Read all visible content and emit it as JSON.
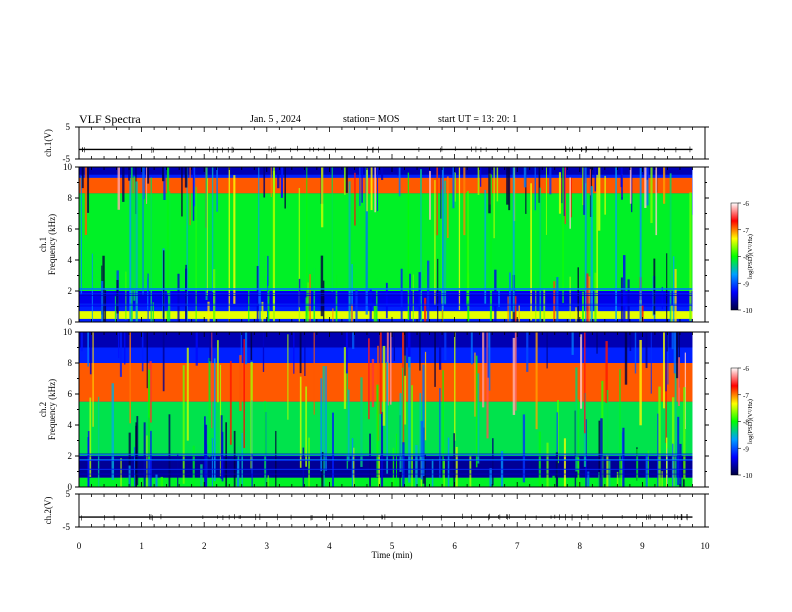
{
  "header": {
    "title": "VLF Spectra",
    "date": "Jan. 5 , 2024",
    "station": "station= MOS",
    "start_ut": "start UT =  13: 20: 1"
  },
  "panels": [
    {
      "id": "ch1-wave",
      "type": "waveform",
      "ylabel": "ch.1(V)",
      "yticks": [
        "5",
        "-5"
      ]
    },
    {
      "id": "ch1-spec",
      "type": "spectrogram",
      "ylabel_top": "ch.1",
      "ylabel": "Frequency (kHz)",
      "yticks": [
        "0",
        "2",
        "4",
        "6",
        "8",
        "10"
      ]
    },
    {
      "id": "ch2-spec",
      "type": "spectrogram",
      "ylabel_top": "ch.2",
      "ylabel": "Frequency (kHz)",
      "yticks": [
        "0",
        "2",
        "4",
        "6",
        "8",
        "10"
      ]
    },
    {
      "id": "ch2-wave",
      "type": "waveform",
      "ylabel": "ch.2(V)",
      "yticks": [
        "5",
        "-5"
      ]
    }
  ],
  "colorbar": {
    "label": "log(PSD)(V²/Hz)",
    "ticks": [
      "-6",
      "-7",
      "-8",
      "-9",
      "-10"
    ],
    "colors": [
      "#ffffff",
      "#ff0000",
      "#ffff00",
      "#00ff00",
      "#00a0ff",
      "#0000ff",
      "#000040"
    ]
  },
  "chart_data": [
    {
      "type": "line",
      "title": "VLF Spectra",
      "xlabel": "Time (min)",
      "ylabel": "ch.1(V)",
      "xlim": [
        0,
        10
      ],
      "ylim": [
        -5,
        5
      ],
      "x_ticks": [
        "0",
        "1",
        "2",
        "3",
        "4",
        "5",
        "6",
        "7",
        "8",
        "9",
        "10"
      ],
      "series": [
        {
          "x": [
            0,
            9.8
          ],
          "values": [
            -2,
            -2
          ]
        }
      ]
    },
    {
      "type": "heatmap",
      "xlabel": "Time (min)",
      "ylabel": "Frequency (kHz)",
      "xlim": [
        0,
        9.8
      ],
      "ylim": [
        0,
        10
      ],
      "colorbar_range": [
        -10,
        -6
      ],
      "bands": [
        {
          "freq_range": [
            9.5,
            10
          ],
          "level": -9.6
        },
        {
          "freq_range": [
            8.3,
            9.3
          ],
          "level": -6.9
        },
        {
          "freq_range": [
            2,
            8.3
          ],
          "level": -8.1
        },
        {
          "freq_range": [
            1,
            2
          ],
          "level": -9.4
        },
        {
          "freq_range": [
            0.2,
            0.7
          ],
          "level": -7.4
        }
      ]
    },
    {
      "type": "heatmap",
      "xlabel": "Time (min)",
      "ylabel": "Frequency (kHz)",
      "xlim": [
        0,
        9.8
      ],
      "ylim": [
        0,
        10
      ],
      "colorbar_range": [
        -10,
        -6
      ],
      "bands": [
        {
          "freq_range": [
            9,
            10
          ],
          "level": -9.6
        },
        {
          "freq_range": [
            5.5,
            8
          ],
          "level": -6.9
        },
        {
          "freq_range": [
            2,
            5.5
          ],
          "level": -8.2
        },
        {
          "freq_range": [
            0.6,
            2
          ],
          "level": -9.7
        },
        {
          "freq_range": [
            0,
            0.6
          ],
          "level": -8.1
        }
      ]
    },
    {
      "type": "line",
      "xlabel": "Time (min)",
      "ylabel": "ch.2(V)",
      "xlim": [
        0,
        10
      ],
      "ylim": [
        -5,
        5
      ],
      "series": [
        {
          "x": [
            0,
            9.8
          ],
          "values": [
            -2,
            -2
          ]
        }
      ]
    }
  ]
}
